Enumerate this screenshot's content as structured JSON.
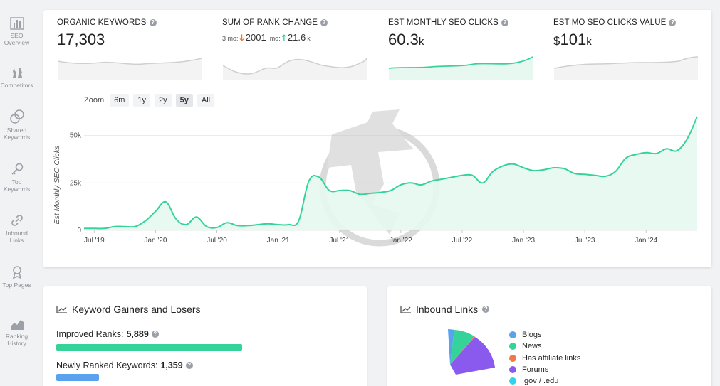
{
  "sidebar": {
    "items": [
      {
        "label": "SEO Overview",
        "icon": "bar-chart-icon"
      },
      {
        "label": "Competitors",
        "icon": "chess-icon"
      },
      {
        "label": "Shared Keywords",
        "icon": "rings-icon"
      },
      {
        "label": "Top Keywords",
        "icon": "key-icon"
      },
      {
        "label": "Inbound Links",
        "icon": "link-icon"
      },
      {
        "label": "Top Pages",
        "icon": "award-icon"
      },
      {
        "label": "Ranking History",
        "icon": "area-chart-icon"
      }
    ]
  },
  "metrics": {
    "organic": {
      "title": "ORGANIC KEYWORDS",
      "value": "17,303"
    },
    "rank": {
      "title": "SUM OF RANK CHANGE",
      "m3_label": "3 mo:",
      "m3_value": "2001",
      "m3_dir": "down",
      "m6_label": "mo:",
      "m6_value": "21.6",
      "m6_unit": "k",
      "m6_dir": "up"
    },
    "clicks": {
      "title": "EST MONTHLY SEO CLICKS",
      "value": "60.3",
      "unit": "k"
    },
    "value": {
      "title": "EST MO SEO CLICKS VALUE",
      "currency": "$",
      "value": "101",
      "unit": "k"
    }
  },
  "zoom": {
    "label": "Zoom",
    "options": [
      "6m",
      "1y",
      "2y",
      "5y",
      "All"
    ],
    "active": "5y"
  },
  "colors": {
    "accent": "#35d39a",
    "fill": "#e6f8f0",
    "grid": "#e8e8e8"
  },
  "chart_data": {
    "type": "area",
    "ylabel": "Est Monthly SEO Clicks",
    "yticks": [
      "0",
      "25k",
      "50k"
    ],
    "ylim": [
      0,
      60000
    ],
    "xticks": [
      "Jul '19",
      "Jan '20",
      "Jul '20",
      "Jan '21",
      "Jul '21",
      "Jan '22",
      "Jul '22",
      "Jan '23",
      "Jul '23",
      "Jan '24"
    ],
    "x": [
      "2019-06",
      "2019-07",
      "2019-08",
      "2019-09",
      "2019-10",
      "2019-11",
      "2019-12",
      "2020-01",
      "2020-02",
      "2020-03",
      "2020-04",
      "2020-05",
      "2020-06",
      "2020-07",
      "2020-08",
      "2020-09",
      "2020-10",
      "2020-11",
      "2020-12",
      "2021-01",
      "2021-02",
      "2021-03",
      "2021-04",
      "2021-05",
      "2021-06",
      "2021-07",
      "2021-08",
      "2021-09",
      "2021-10",
      "2021-11",
      "2021-12",
      "2022-01",
      "2022-02",
      "2022-03",
      "2022-04",
      "2022-05",
      "2022-06",
      "2022-07",
      "2022-08",
      "2022-09",
      "2022-10",
      "2022-11",
      "2022-12",
      "2023-01",
      "2023-02",
      "2023-03",
      "2023-04",
      "2023-05",
      "2023-06",
      "2023-07",
      "2023-08",
      "2023-09",
      "2023-10",
      "2023-11",
      "2023-12",
      "2024-01",
      "2024-02",
      "2024-03",
      "2024-04",
      "2024-05",
      "2024-06"
    ],
    "values": [
      1000,
      1000,
      1000,
      2000,
      2000,
      2000,
      5000,
      10000,
      15000,
      6000,
      3000,
      7000,
      2000,
      1500,
      4000,
      2500,
      2500,
      3000,
      3500,
      3000,
      3000,
      5000,
      26000,
      28000,
      21000,
      21000,
      21000,
      19000,
      19500,
      20000,
      21000,
      24000,
      25000,
      24000,
      26000,
      27000,
      28000,
      29000,
      29000,
      25000,
      31000,
      34000,
      35000,
      33000,
      31500,
      32000,
      33000,
      32500,
      30000,
      29500,
      29000,
      28500,
      31000,
      38000,
      40000,
      41000,
      40500,
      43000,
      42000,
      48000,
      60000
    ]
  },
  "gainers": {
    "title": "Keyword Gainers and Losers",
    "improved_label": "Improved Ranks:",
    "improved_value": "5,889",
    "newly_label": "Newly Ranked Keywords:",
    "newly_value": "1,359"
  },
  "inbound": {
    "title": "Inbound Links",
    "legend": [
      {
        "label": "Blogs",
        "color": "#5aa2ee"
      },
      {
        "label": "News",
        "color": "#35d39a"
      },
      {
        "label": "Has affiliate links",
        "color": "#ee7b45"
      },
      {
        "label": "Forums",
        "color": "#8a59ee"
      },
      {
        "label": ".gov / .edu",
        "color": "#2fd3ea"
      }
    ]
  }
}
